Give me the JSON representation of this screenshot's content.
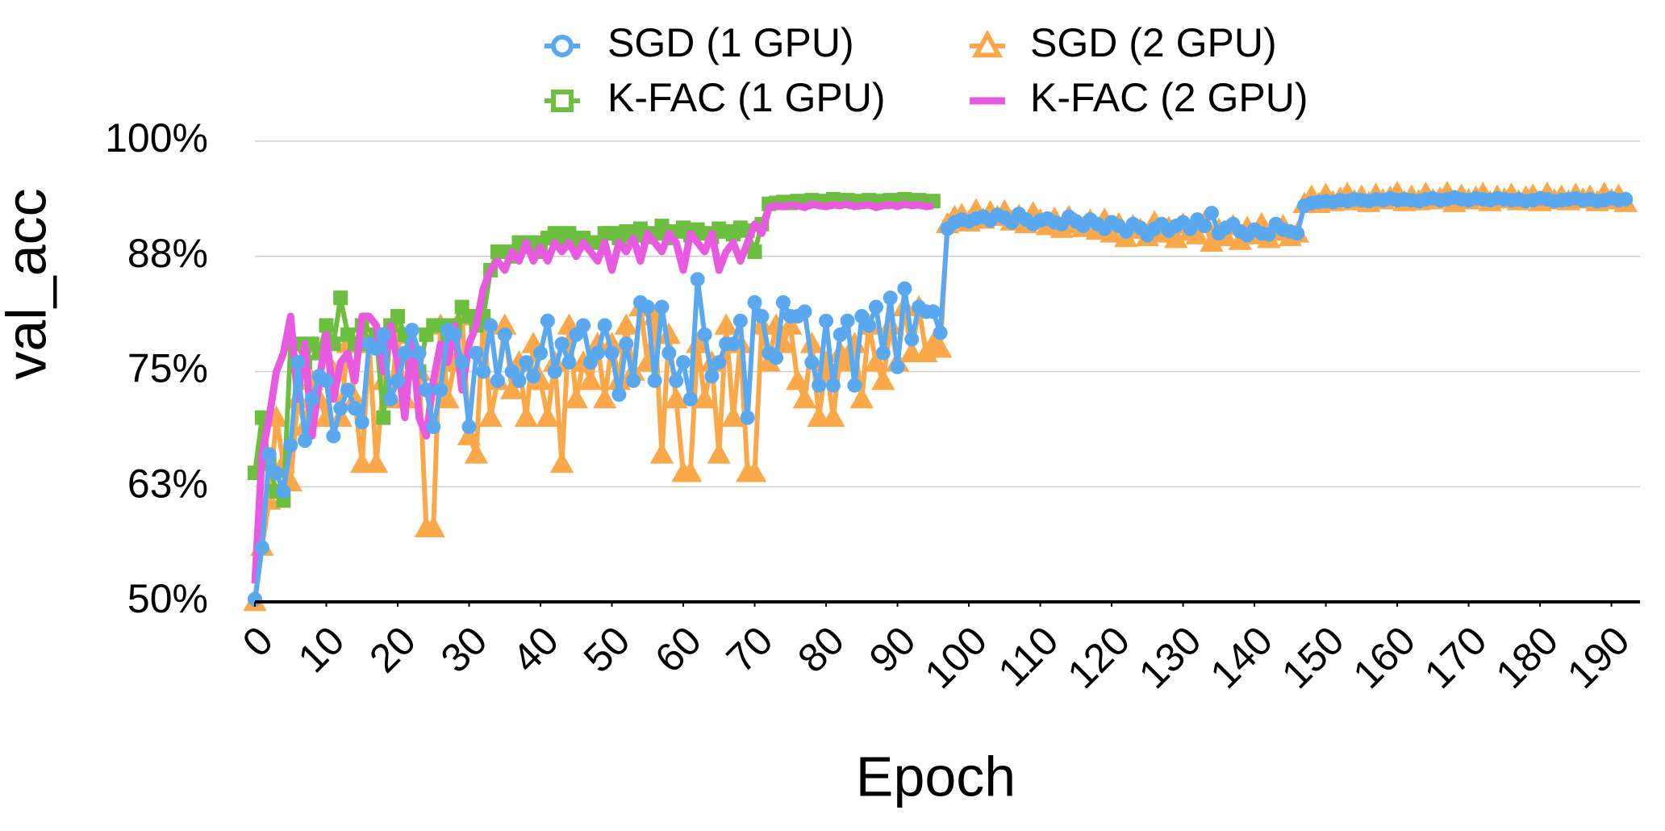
{
  "chart_data": {
    "type": "line",
    "x_label": "Epoch",
    "y_label": "val_acc",
    "x": [
      0,
      1,
      2,
      3,
      4,
      5,
      6,
      7,
      8,
      9,
      10,
      11,
      12,
      13,
      14,
      15,
      16,
      17,
      18,
      19,
      20,
      21,
      22,
      23,
      24,
      25,
      26,
      27,
      28,
      29,
      30,
      31,
      32,
      33,
      34,
      35,
      36,
      37,
      38,
      39,
      40,
      41,
      42,
      43,
      44,
      45,
      46,
      47,
      48,
      49,
      50,
      51,
      52,
      53,
      54,
      55,
      56,
      57,
      58,
      59,
      60,
      61,
      62,
      63,
      64,
      65,
      66,
      67,
      68,
      69,
      70,
      71,
      72,
      73,
      74,
      75,
      76,
      77,
      78,
      79,
      80,
      81,
      82,
      83,
      84,
      85,
      86,
      87,
      88,
      89,
      90,
      91,
      92,
      93,
      94,
      95,
      96,
      97,
      98,
      99,
      100,
      101,
      102,
      103,
      104,
      105,
      106,
      107,
      108,
      109,
      110,
      111,
      112,
      113,
      114,
      115,
      116,
      117,
      118,
      119,
      120,
      121,
      122,
      123,
      124,
      125,
      126,
      127,
      128,
      129,
      130,
      131,
      132,
      133,
      134,
      135,
      136,
      137,
      138,
      139,
      140,
      141,
      142,
      143,
      144,
      145,
      146,
      147,
      148,
      149,
      150,
      151,
      152,
      153,
      154,
      155,
      156,
      157,
      158,
      159,
      160,
      161,
      162,
      163,
      164,
      165,
      166,
      167,
      168,
      169,
      170,
      171,
      172,
      173,
      174,
      175,
      176,
      177,
      178,
      179,
      180,
      181,
      182,
      183,
      184,
      185,
      186,
      187,
      188,
      189,
      190,
      191,
      192
    ],
    "series": [
      {
        "name": "SGD (2 GPU)",
        "color": "#fba84a",
        "marker": "triangle",
        "values": [
          50,
          56,
          61,
          70,
          65,
          63,
          72,
          69,
          74,
          72,
          70,
          75,
          70,
          78,
          72,
          65,
          78,
          65,
          74,
          72,
          79,
          72,
          78,
          75,
          58,
          58,
          80,
          72,
          76,
          81,
          68,
          66,
          81,
          70,
          74,
          80,
          73,
          76,
          70,
          78,
          74,
          70,
          76,
          65,
          80,
          72,
          76,
          74,
          78,
          72,
          78,
          74,
          80,
          75,
          82,
          76,
          81,
          66,
          79,
          72,
          64,
          64,
          78,
          72,
          76,
          66,
          80,
          70,
          78,
          64,
          64,
          80,
          76,
          80,
          78,
          80,
          74,
          72,
          78,
          70,
          76,
          70,
          77,
          76,
          78,
          72,
          80,
          76,
          74,
          80,
          76,
          82,
          77,
          82,
          77,
          78,
          77.5,
          91.0,
          91.8,
          92.0,
          91.2,
          92.5,
          91.5,
          92.3,
          91.8,
          92.4,
          91.3,
          91.9,
          91.0,
          92.2,
          91.4,
          90.8,
          91.6,
          90.5,
          91.8,
          91.0,
          90.6,
          91.4,
          90.3,
          91.5,
          90.0,
          91.0,
          89.5,
          90.8,
          90.4,
          89.6,
          91.2,
          90.0,
          90.6,
          89.4,
          91.0,
          90.2,
          89.8,
          91.2,
          89.0,
          90.4,
          89.6,
          90.8,
          89.2,
          90.6,
          89.8,
          91.0,
          89.4,
          90.2,
          90.8,
          89.6,
          90.0,
          93.2,
          94.0,
          93.2,
          94.2,
          93.4,
          93.8,
          94.3,
          93.5,
          94.0,
          93.3,
          94.2,
          93.6,
          93.9,
          94.4,
          93.4,
          94.0,
          93.5,
          94.3,
          93.6,
          93.8,
          94.4,
          93.3,
          94.1,
          93.6,
          93.9,
          94.3,
          93.4,
          94.0,
          93.7,
          94.2,
          93.5,
          93.9,
          94.1,
          93.4,
          94.3,
          93.6,
          94.0,
          93.5,
          94.2,
          93.7,
          94.0,
          93.4,
          94.3,
          93.6,
          94.1,
          93.3
        ]
      },
      {
        "name": "K-FAC (1 GPU)",
        "color": "#6cbf3f",
        "marker": "square",
        "values": [
          64,
          70,
          65,
          62,
          61,
          78,
          78,
          76,
          78,
          77,
          80,
          78,
          83,
          79,
          78,
          80,
          78,
          79,
          70,
          80,
          81,
          79,
          76,
          75,
          79,
          80,
          80,
          79,
          80,
          82,
          81,
          80,
          81,
          86,
          88,
          88,
          87.5,
          89,
          88.5,
          89,
          88,
          89.5,
          90,
          89,
          90,
          89,
          89.5,
          89,
          89,
          90,
          90.0,
          89.5,
          90.2,
          89.8,
          90.5,
          89.6,
          90.0,
          90.8,
          89.5,
          90.2,
          90.6,
          89.8,
          90.4,
          90.0,
          89.6,
          90.5,
          90.2,
          89.9,
          90.6,
          90.3,
          88.0,
          91.0,
          93.2,
          93.3,
          93.4,
          93.3,
          93.5,
          93.4,
          93.6,
          93.5,
          93.4,
          93.7,
          93.5,
          93.6,
          93.4,
          93.5,
          93.6,
          93.5,
          93.4,
          93.6,
          93.5,
          93.7,
          93.5,
          93.6,
          93.4,
          93.5,
          null,
          null,
          null,
          null,
          null,
          null,
          null,
          null,
          null,
          null,
          null,
          null,
          null,
          null,
          null,
          null,
          null,
          null,
          null,
          null,
          null,
          null,
          null,
          null,
          null,
          null,
          null,
          null,
          null,
          null,
          null,
          null,
          null,
          null,
          null,
          null,
          null,
          null,
          null,
          null,
          null,
          null,
          null,
          null,
          null,
          null,
          null,
          null,
          null,
          null,
          null,
          null,
          null,
          null,
          null,
          null,
          null,
          null,
          null,
          null,
          null,
          null,
          null,
          null,
          null,
          null,
          null,
          null,
          null,
          null,
          null,
          null,
          null,
          null,
          null,
          null,
          null,
          null,
          null,
          null,
          null,
          null,
          null,
          null,
          null,
          null,
          null,
          null,
          null,
          null,
          null,
          null,
          null,
          null,
          null,
          null,
          null
        ]
      },
      {
        "name": "K-FAC (2 GPU)",
        "color": "#e85ae0",
        "marker": "none",
        "values": [
          52,
          66,
          70,
          75,
          77,
          81,
          72,
          78,
          68,
          74,
          79,
          72,
          76,
          77,
          74,
          81,
          81,
          80,
          75,
          80,
          76,
          70,
          79,
          70,
          68,
          74,
          78,
          76,
          80,
          73,
          78,
          80,
          84,
          86,
          87,
          86,
          88,
          87,
          89,
          87,
          88.5,
          87,
          89,
          88,
          89,
          87.5,
          89,
          88,
          87,
          89,
          86,
          89,
          88,
          89.5,
          87,
          90,
          89,
          88,
          90,
          89,
          86,
          90,
          89,
          88,
          90,
          86,
          88,
          89,
          87,
          89,
          91,
          90,
          92.8,
          93.0,
          92.9,
          93.1,
          93.0,
          92.8,
          93.2,
          93.0,
          92.9,
          93.1,
          93.0,
          93.2,
          92.9,
          93.0,
          93.1,
          92.8,
          93.0,
          93.1,
          92.9,
          93.2,
          93.0,
          93.1,
          92.9,
          93.0,
          null,
          null,
          null,
          null,
          null,
          null,
          null,
          null,
          null,
          null,
          null,
          null,
          null,
          null,
          null,
          null,
          null,
          null,
          null,
          null,
          null,
          null,
          null,
          null,
          null,
          null,
          null,
          null,
          null,
          null,
          null,
          null,
          null,
          null,
          null,
          null,
          null,
          null,
          null,
          null,
          null,
          null,
          null,
          null,
          null,
          null,
          null,
          null,
          null,
          null,
          null,
          null,
          null,
          null,
          null,
          null,
          null,
          null,
          null,
          null,
          null,
          null,
          null,
          null,
          null,
          null,
          null,
          null,
          null,
          null,
          null,
          null,
          null,
          null,
          null,
          null,
          null,
          null,
          null,
          null,
          null,
          null,
          null,
          null,
          null,
          null,
          null,
          null,
          null,
          null,
          null,
          null,
          null,
          null,
          null,
          null,
          null
        ]
      },
      {
        "name": "SGD (1 GPU)",
        "color": "#5aa9f0",
        "marker": "circle",
        "values": [
          50.3,
          55.9,
          66,
          64,
          62,
          67,
          76,
          67.5,
          72,
          74.5,
          74,
          68,
          71,
          73,
          71,
          69.5,
          78,
          77.5,
          79,
          72,
          74,
          77,
          79.5,
          77,
          73,
          69,
          73,
          79.5,
          79,
          76,
          69,
          77,
          75,
          80,
          74,
          79,
          75,
          74,
          76,
          74.5,
          77,
          80.5,
          75,
          78,
          76,
          79,
          80,
          76,
          77,
          80,
          77,
          72.5,
          78,
          74,
          82.5,
          82,
          74,
          82,
          77,
          74,
          76,
          72,
          85,
          79,
          74.5,
          76,
          78,
          78,
          80.5,
          70,
          82.5,
          81,
          77,
          76.5,
          82.5,
          81,
          81,
          81.5,
          76,
          73.5,
          80.5,
          73.5,
          79,
          80.5,
          73.5,
          81,
          80,
          82,
          77,
          83,
          75.5,
          84,
          78.5,
          82,
          81.5,
          81.5,
          79.2,
          90.5,
          91.2,
          91.5,
          91.3,
          91.6,
          91.8,
          91.4,
          92.0,
          91.7,
          91.2,
          92.1,
          91.5,
          91.0,
          91.4,
          91.6,
          91.2,
          91.0,
          91.8,
          91.3,
          90.8,
          91.5,
          91.0,
          90.5,
          91.2,
          90.8,
          90.2,
          91.0,
          90.6,
          89.8,
          90.5,
          91.0,
          90.3,
          90.8,
          91.2,
          90.5,
          91.5,
          90.8,
          92.2,
          90.0,
          90.6,
          91.0,
          90.2,
          89.8,
          90.4,
          90.0,
          89.9,
          91.0,
          90.4,
          90.2,
          90.0,
          93.0,
          93.3,
          93.4,
          93.5,
          93.4,
          93.6,
          93.5,
          93.7,
          93.6,
          93.5,
          93.7,
          93.6,
          93.8,
          93.6,
          93.7,
          93.6,
          93.5,
          93.7,
          93.8,
          93.6,
          93.7,
          93.9,
          93.7,
          93.6,
          93.8,
          93.7,
          93.6,
          93.8,
          93.7,
          93.6,
          93.7,
          93.5,
          93.6,
          93.8,
          93.7,
          93.5,
          93.6,
          93.7,
          93.8,
          93.6,
          93.7,
          93.5,
          93.6,
          93.8,
          93.6,
          93.7
        ]
      }
    ],
    "legend_order": [
      3,
      0,
      1,
      2
    ],
    "xlim": [
      0,
      194
    ],
    "xticks": [
      0,
      10,
      20,
      30,
      40,
      50,
      60,
      70,
      80,
      90,
      100,
      110,
      120,
      130,
      140,
      150,
      160,
      170,
      180,
      190
    ],
    "ylim": [
      50,
      100
    ],
    "yticks": [
      {
        "value": 50,
        "label": "50%"
      },
      {
        "value": 62.5,
        "label": "63%"
      },
      {
        "value": 75,
        "label": "75%"
      },
      {
        "value": 87.5,
        "label": "88%"
      },
      {
        "value": 100,
        "label": "100%"
      }
    ],
    "grid": true
  }
}
